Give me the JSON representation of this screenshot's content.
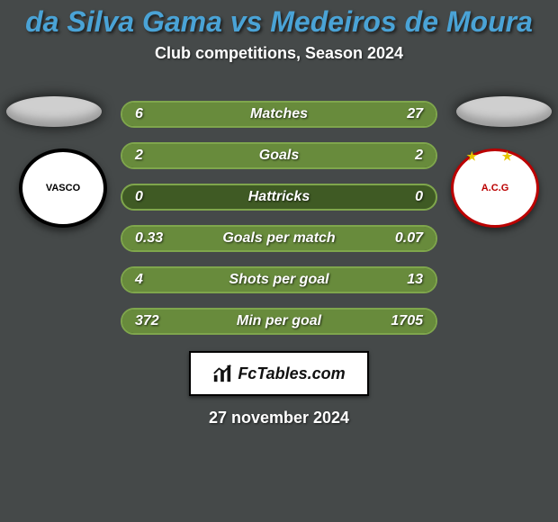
{
  "title": "da Silva Gama vs Medeiros de Moura",
  "title_color": "#4aa3d6",
  "title_fontsize": 32,
  "subtitle": "Club competitions, Season 2024",
  "subtitle_fontsize": 18,
  "date": "27 november 2024",
  "brand": "FcTables.com",
  "left_crest_label": "VASCO",
  "right_crest_label": "A.C.G",
  "colors": {
    "background": "#454949",
    "bar_border": "#7fa64c",
    "bar_track": "#3f5a24",
    "bar_fill_left": "#688b3c",
    "bar_fill_right": "#688b3c",
    "ellipse": "#cfcfcf"
  },
  "bars": [
    {
      "label": "Matches",
      "left": "6",
      "right": "27",
      "left_pct": 18,
      "right_pct": 82
    },
    {
      "label": "Goals",
      "left": "2",
      "right": "2",
      "left_pct": 50,
      "right_pct": 50
    },
    {
      "label": "Hattricks",
      "left": "0",
      "right": "0",
      "left_pct": 0,
      "right_pct": 0
    },
    {
      "label": "Goals per match",
      "left": "0.33",
      "right": "0.07",
      "left_pct": 82,
      "right_pct": 18
    },
    {
      "label": "Shots per goal",
      "left": "4",
      "right": "13",
      "left_pct": 24,
      "right_pct": 76
    },
    {
      "label": "Min per goal",
      "left": "372",
      "right": "1705",
      "left_pct": 18,
      "right_pct": 82
    }
  ]
}
